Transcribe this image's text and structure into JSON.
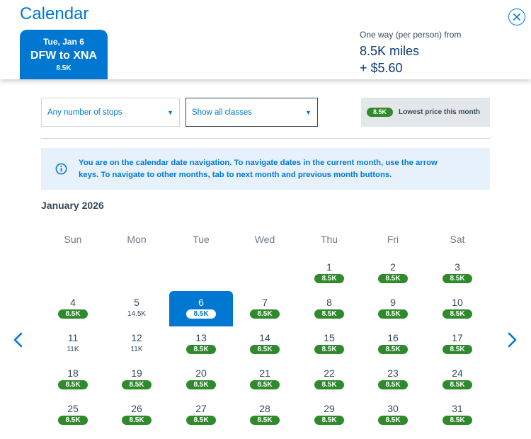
{
  "header": {
    "title": "Calendar",
    "flight": {
      "date": "Tue, Jan 6",
      "route": "DFW to XNA",
      "price": "8.5K"
    },
    "fare": {
      "label": "One way (per person) from",
      "miles": "8.5K miles",
      "cash": "+ $5.60"
    }
  },
  "filters": {
    "stops": "Any number of stops",
    "classes": "Show all classes",
    "lowest_badge": "8.5K",
    "lowest_label": "Lowest price this month"
  },
  "info": {
    "text": "You are on the calendar date navigation. To navigate dates in the current month, use the arrow keys. To navigate to other months, tab to next month and previous month buttons."
  },
  "calendar": {
    "month": "January 2026",
    "weekdays": [
      "Sun",
      "Mon",
      "Tue",
      "Wed",
      "Thu",
      "Fri",
      "Sat"
    ],
    "start_weekday": 4,
    "selected_day": 6,
    "days": [
      {
        "day": "1",
        "price": "8.5K",
        "lowest": true
      },
      {
        "day": "2",
        "price": "8.5K",
        "lowest": true
      },
      {
        "day": "3",
        "price": "8.5K",
        "lowest": true
      },
      {
        "day": "4",
        "price": "8.5K",
        "lowest": true
      },
      {
        "day": "5",
        "price": "14.5K",
        "lowest": false
      },
      {
        "day": "6",
        "price": "8.5K",
        "lowest": true
      },
      {
        "day": "7",
        "price": "8.5K",
        "lowest": true
      },
      {
        "day": "8",
        "price": "8.5K",
        "lowest": true
      },
      {
        "day": "9",
        "price": "8.5K",
        "lowest": true
      },
      {
        "day": "10",
        "price": "8.5K",
        "lowest": true
      },
      {
        "day": "11",
        "price": "11K",
        "lowest": false
      },
      {
        "day": "12",
        "price": "11K",
        "lowest": false
      },
      {
        "day": "13",
        "price": "8.5K",
        "lowest": true
      },
      {
        "day": "14",
        "price": "8.5K",
        "lowest": true
      },
      {
        "day": "15",
        "price": "8.5K",
        "lowest": true
      },
      {
        "day": "16",
        "price": "8.5K",
        "lowest": true
      },
      {
        "day": "17",
        "price": "8.5K",
        "lowest": true
      },
      {
        "day": "18",
        "price": "8.5K",
        "lowest": true
      },
      {
        "day": "19",
        "price": "8.5K",
        "lowest": true
      },
      {
        "day": "20",
        "price": "8.5K",
        "lowest": true
      },
      {
        "day": "21",
        "price": "8.5K",
        "lowest": true
      },
      {
        "day": "22",
        "price": "8.5K",
        "lowest": true
      },
      {
        "day": "23",
        "price": "8.5K",
        "lowest": true
      },
      {
        "day": "24",
        "price": "8.5K",
        "lowest": true
      },
      {
        "day": "25",
        "price": "8.5K",
        "lowest": true
      },
      {
        "day": "26",
        "price": "8.5K",
        "lowest": true
      },
      {
        "day": "27",
        "price": "8.5K",
        "lowest": true
      },
      {
        "day": "28",
        "price": "8.5K",
        "lowest": true
      },
      {
        "day": "29",
        "price": "8.5K",
        "lowest": true
      },
      {
        "day": "30",
        "price": "8.5K",
        "lowest": true
      },
      {
        "day": "31",
        "price": "8.5K",
        "lowest": true
      }
    ]
  },
  "colors": {
    "brand_blue": "#0078d2",
    "price_green": "#2f8a2c",
    "text_dark": "#36495a"
  },
  "icons": {
    "close": "close-circle-icon",
    "info": "info-circle-icon",
    "prev": "chevron-left-icon",
    "next": "chevron-right-icon",
    "caret": "caret-down-icon"
  }
}
